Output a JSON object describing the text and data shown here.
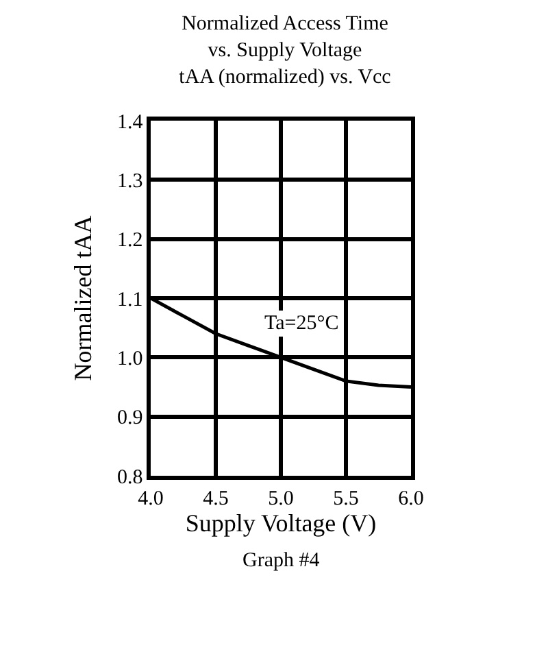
{
  "chart_data": {
    "type": "line",
    "title": "Normalized Access Time\nvs. Supply Voltage\ntAA (normalized) vs. Vcc",
    "xlabel": "Supply Voltage (V)",
    "ylabel": "Normalized tAA",
    "x": [
      4.0,
      4.25,
      4.5,
      4.75,
      5.0,
      5.25,
      5.5,
      5.75,
      6.0
    ],
    "series": [
      {
        "color": "#000000",
        "values": [
          1.1,
          1.07,
          1.04,
          1.02,
          1.0,
          0.98,
          0.96,
          0.953,
          0.95
        ]
      }
    ],
    "xlim": [
      4.0,
      6.0
    ],
    "xticks": [
      {
        "value": 4,
        "label": "4.0"
      },
      4.5,
      {
        "value": 5,
        "label": "5.0"
      },
      5.5,
      {
        "value": 6,
        "label": "6.0"
      }
    ],
    "ylim": [
      0.8,
      1.4
    ],
    "yticks": [
      0.8,
      0.9,
      {
        "value": 1,
        "label": "1.0"
      },
      1.1,
      1.2,
      1.3,
      1.4
    ],
    "grid": true,
    "marker": "none",
    "line_style": "solid",
    "annotations": [
      "Ta=25°C",
      "Graph #4"
    ]
  }
}
